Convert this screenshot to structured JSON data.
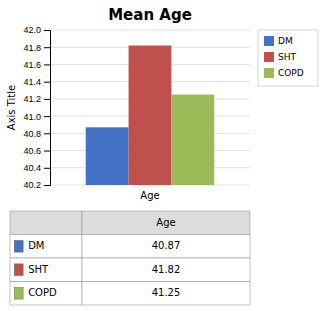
{
  "chart_data": {
    "type": "bar",
    "title": "Mean Age",
    "xlabel": "Age",
    "ylabel": "Axis Title",
    "categories": [
      "DM",
      "SHT",
      "COPD"
    ],
    "values": [
      40.87,
      41.82,
      41.25
    ],
    "colors": [
      "#4472C4",
      "#C0504D",
      "#9BBB59"
    ],
    "ylim": [
      40.2,
      42.0
    ],
    "yticks": [
      40.2,
      40.4,
      40.6,
      40.8,
      {
        "value": 41.0,
        "label": "41.0"
      },
      41.2,
      41.4,
      41.6,
      41.8,
      {
        "value": 42.0,
        "label": "42.0"
      }
    ],
    "grid": true,
    "legend": "right"
  }
}
